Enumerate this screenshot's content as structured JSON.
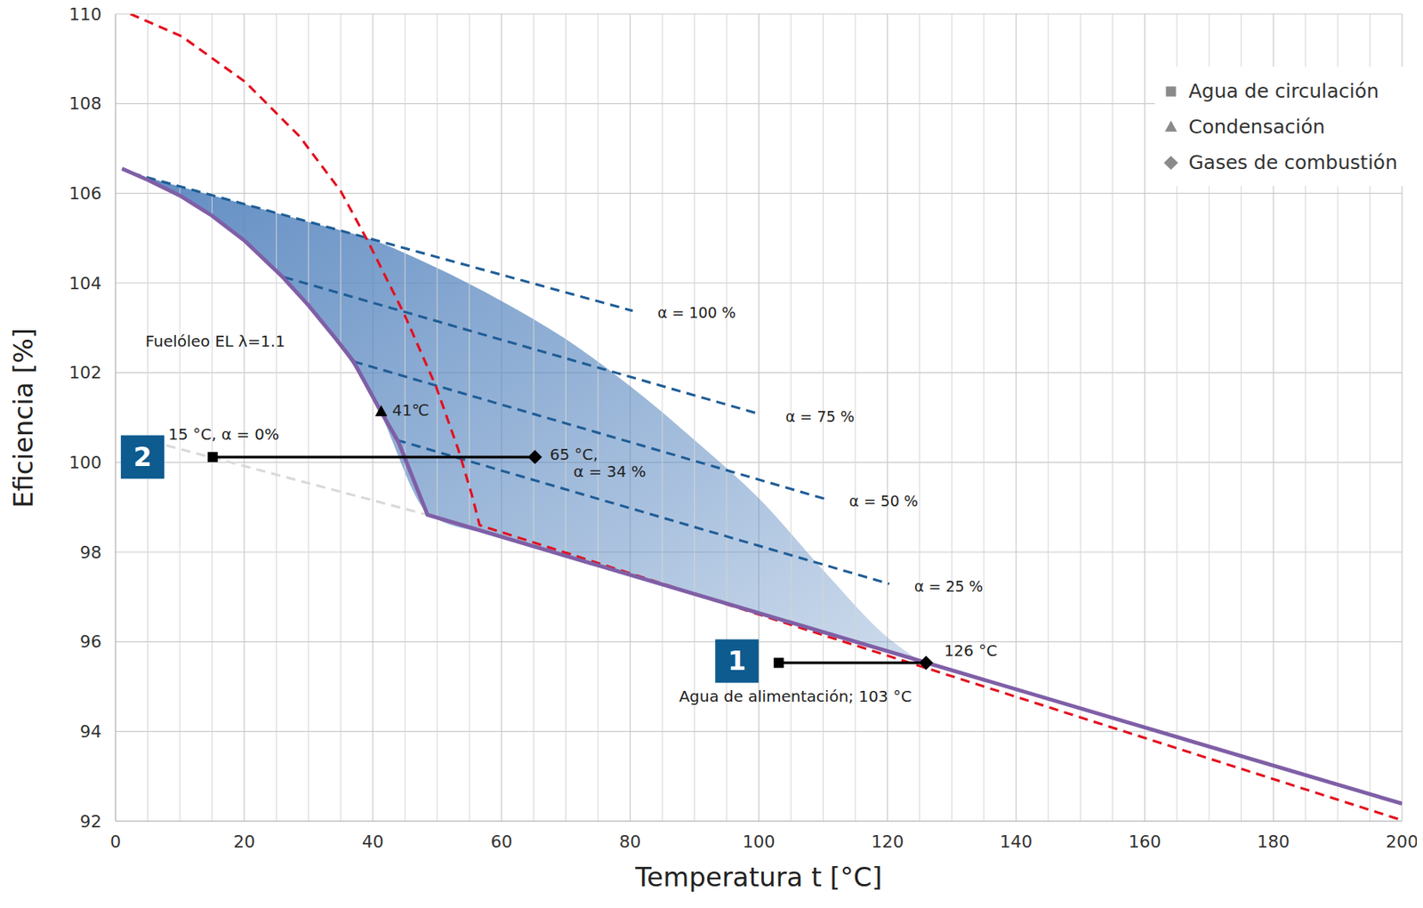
{
  "chart_data": {
    "type": "line",
    "xlabel": "Temperatura t [°C]",
    "ylabel": "Eficiencia [%]",
    "xlim": [
      0,
      200
    ],
    "xticks": [
      0,
      20,
      40,
      60,
      80,
      100,
      120,
      140,
      160,
      180,
      200
    ],
    "ylim": [
      92,
      110
    ],
    "yticks": [
      92,
      94,
      96,
      98,
      100,
      102,
      104,
      106,
      108,
      110
    ],
    "grid": true,
    "legend": "upper right",
    "series": [
      {
        "type": "area",
        "color": "#5a88c0",
        "x": [
          5,
          10,
          20,
          30,
          40,
          49,
          60,
          70,
          80,
          90,
          100,
          110,
          120,
          125
        ],
        "low": [
          106.3,
          105.95,
          104.95,
          103.5,
          101.45,
          98.81,
          98.34,
          97.92,
          97.49,
          97.07,
          96.64,
          96.22,
          95.79,
          95.58
        ],
        "high": [
          106.35,
          106.15,
          105.76,
          105.36,
          104.96,
          104.4,
          103.6,
          102.75,
          101.7,
          100.5,
          99.2,
          97.6,
          96.1,
          95.58
        ]
      },
      {
        "type": "line",
        "color": "#d9d9d9",
        "line_style": "dashed",
        "x": [
          7.9,
          48.5
        ],
        "values": [
          100.38,
          98.83
        ]
      },
      {
        "type": "line",
        "name": "α = 100 %",
        "color": "#1f5d96",
        "line_style": "dashed",
        "x": [
          2.5,
          80.4
        ],
        "values": [
          106.45,
          103.38
        ]
      },
      {
        "type": "line",
        "name": "α = 75 %",
        "color": "#1f5d96",
        "line_style": "dashed",
        "x": [
          26.2,
          100.3
        ],
        "values": [
          104.13,
          101.07
        ]
      },
      {
        "type": "line",
        "name": "α = 50 %",
        "color": "#1f5d96",
        "line_style": "dashed",
        "x": [
          37,
          110.2
        ],
        "values": [
          102.25,
          99.19
        ]
      },
      {
        "type": "line",
        "name": "α = 25 %",
        "color": "#1f5d96",
        "line_style": "dashed",
        "x": [
          43.7,
          120.3
        ],
        "values": [
          100.5,
          97.29
        ]
      },
      {
        "type": "line",
        "color": "#e3101e",
        "line_style": "dashed",
        "x": [
          2.3,
          10.3,
          20.2,
          28.6,
          35,
          39.2,
          44.9,
          49.8,
          53.3,
          55.4,
          56.6,
          200
        ],
        "values": [
          110,
          109.5,
          108.48,
          107.27,
          106.05,
          104.94,
          103.3,
          101.7,
          100.28,
          99.27,
          98.6,
          92.02
        ]
      },
      {
        "type": "line",
        "color": "#7f5fa6",
        "line_style": "solid",
        "x": [
          1,
          5,
          10,
          15,
          20,
          26,
          30,
          34,
          37,
          41,
          44,
          48.5,
          200
        ],
        "values": [
          106.55,
          106.3,
          105.95,
          105.5,
          104.95,
          104.13,
          103.5,
          102.8,
          102.25,
          101.2,
          100.45,
          98.83,
          92.39
        ]
      },
      {
        "type": "line",
        "color": "#000000",
        "line_style": "solid",
        "x": [
          15.1,
          65.2
        ],
        "values": [
          100.12,
          100.12
        ]
      },
      {
        "type": "line",
        "color": "#000000",
        "line_style": "solid",
        "x": [
          103.1,
          126
        ],
        "values": [
          95.53,
          95.53
        ]
      },
      {
        "type": "scatter",
        "name": "Agua de circulación",
        "marker": "square",
        "color": "#000000",
        "x": [
          15.1,
          103.1
        ],
        "values": [
          100.12,
          95.53
        ]
      },
      {
        "type": "scatter",
        "name": "Condensación",
        "marker": "triangle",
        "color": "#000000",
        "x": [
          41.3
        ],
        "values": [
          101.13
        ]
      },
      {
        "type": "scatter",
        "name": "Gases de combustión",
        "marker": "diamond",
        "color": "#000000",
        "x": [
          65.2,
          126
        ],
        "values": [
          100.12,
          95.53
        ]
      }
    ],
    "annotations": [
      {
        "text": "Fuelóleo EL λ=1.1",
        "x": 4.65,
        "y": 102.67
      },
      {
        "text": "15 °C, α = 0%",
        "x": 8.2,
        "y": 100.6
      },
      {
        "text": "65 °C,",
        "x": 67.5,
        "y": 100.15
      },
      {
        "text": "α = 34 %",
        "x": 71.2,
        "y": 99.78
      },
      {
        "text": "41℃",
        "x": 43,
        "y": 101.13
      },
      {
        "text": "126 °C",
        "x": 128.8,
        "y": 95.77
      },
      {
        "text": "Agua de alimentación; 103 °C",
        "x": 87.6,
        "y": 94.76
      }
    ],
    "badges": [
      {
        "text": "1",
        "x": 96.6,
        "y": 95.57
      },
      {
        "text": "2",
        "x": 4.2,
        "y": 100.12
      }
    ]
  }
}
